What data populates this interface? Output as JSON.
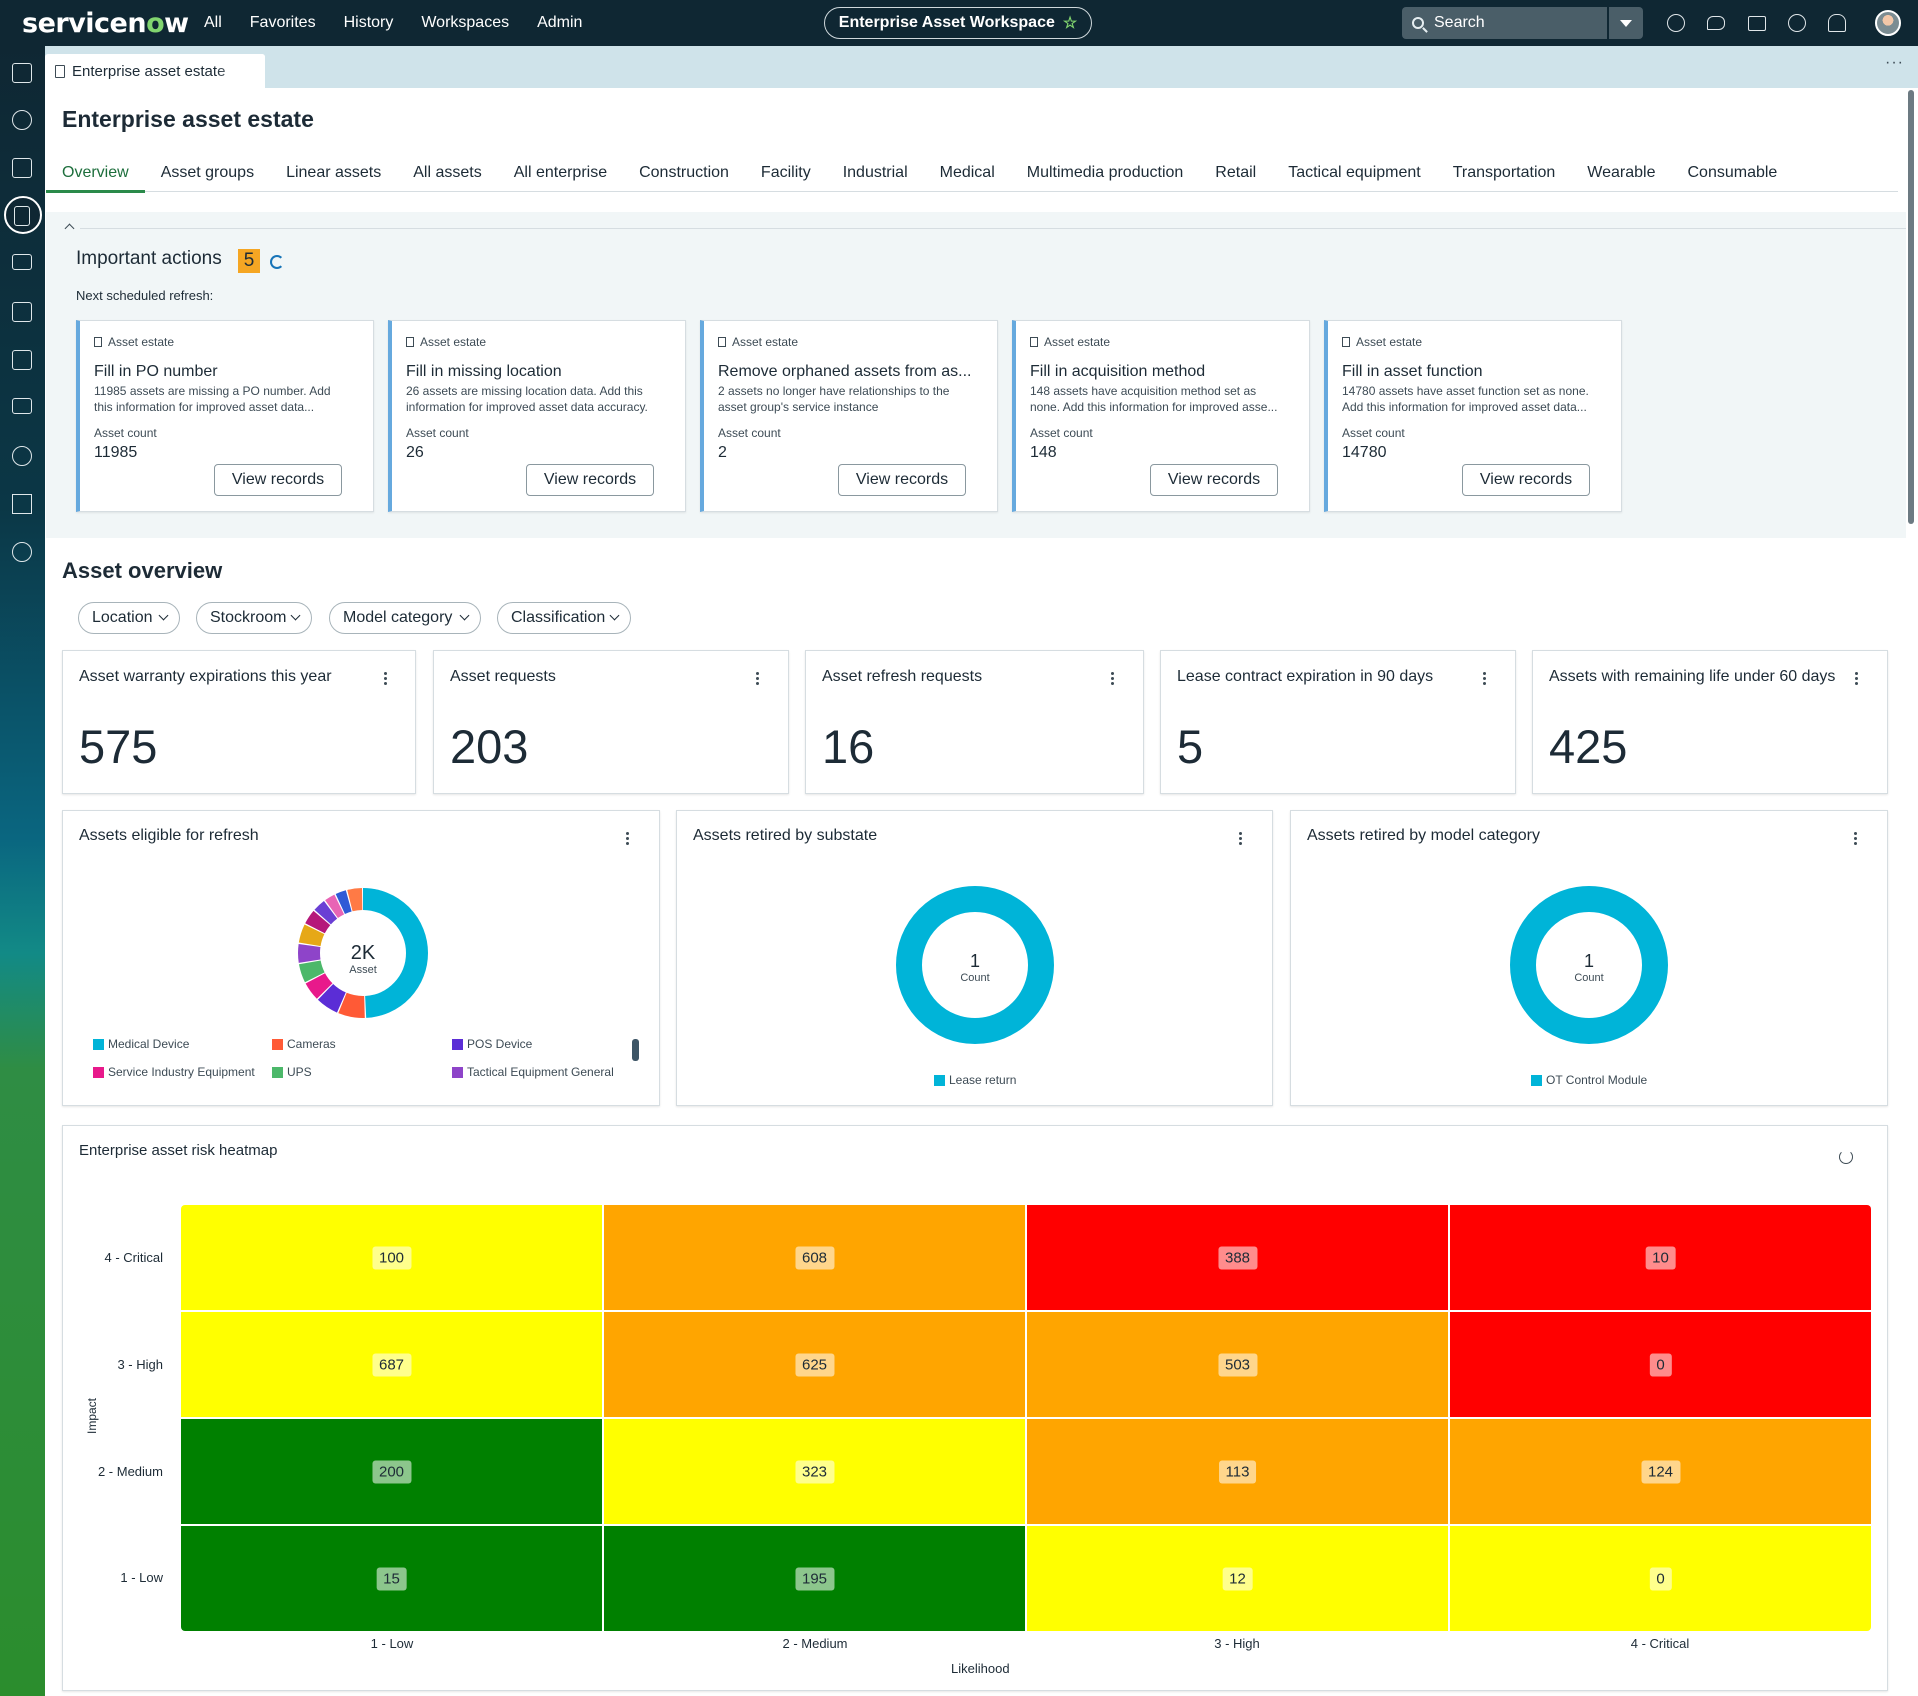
{
  "topbar": {
    "logo_prefix": "servicen",
    "logo_o": "o",
    "logo_suffix": "w",
    "nav": [
      "All",
      "Favorites",
      "History",
      "Workspaces",
      "Admin"
    ],
    "workspace": "Enterprise Asset Workspace",
    "search_placeholder": "Search",
    "icons": [
      "globe-icon",
      "chat-icon",
      "inbox-icon",
      "help-icon",
      "bell-icon",
      "avatar"
    ]
  },
  "rail": {
    "icons": [
      "home-icon",
      "dashboard-icon",
      "building-icon",
      "clipboard-icon",
      "sliders-icon",
      "contract-icon",
      "book-icon",
      "list-icon",
      "wrench-icon",
      "transfer-icon",
      "settings-icon"
    ]
  },
  "tabstrip": {
    "doc_tab": "Enterprise asset estate",
    "more": "···"
  },
  "page": {
    "title": "Enterprise asset estate",
    "tabs": [
      "Overview",
      "Asset groups",
      "Linear assets",
      "All assets",
      "All enterprise",
      "Construction",
      "Facility",
      "Industrial",
      "Medical",
      "Multimedia production",
      "Retail",
      "Tactical equipment",
      "Transportation",
      "Wearable",
      "Consumable"
    ],
    "selected_tab": "Overview"
  },
  "important_actions": {
    "title": "Important actions",
    "count": "5",
    "next_refresh": "Next scheduled refresh:",
    "cards": [
      {
        "category": "Asset estate",
        "title": "Fill in PO number",
        "desc": "11985 assets are missing a PO number. Add this information for improved asset data...",
        "count_label": "Asset count",
        "count": "11985",
        "button": "View records"
      },
      {
        "category": "Asset estate",
        "title": "Fill in missing location",
        "desc": "26 assets are missing location data. Add this information for improved asset data accuracy.",
        "count_label": "Asset count",
        "count": "26",
        "button": "View records"
      },
      {
        "category": "Asset estate",
        "title": "Remove orphaned assets from as...",
        "desc": "2 assets no longer have relationships to the asset group's service instance",
        "count_label": "Asset count",
        "count": "2",
        "button": "View records"
      },
      {
        "category": "Asset estate",
        "title": "Fill in acquisition method",
        "desc": "148 assets have acquisition method set as none. Add this information for improved asse...",
        "count_label": "Asset count",
        "count": "148",
        "button": "View records"
      },
      {
        "category": "Asset estate",
        "title": "Fill in asset function",
        "desc": "14780 assets have asset function set as none. Add this information for improved asset data...",
        "count_label": "Asset count",
        "count": "14780",
        "button": "View records"
      }
    ]
  },
  "asset_overview": {
    "title": "Asset overview",
    "filters": [
      "Location",
      "Stockroom",
      "Model category",
      "Classification"
    ],
    "kpis": [
      {
        "label": "Asset warranty expirations this year",
        "value": "575"
      },
      {
        "label": "Asset requests",
        "value": "203"
      },
      {
        "label": "Asset refresh requests",
        "value": "16"
      },
      {
        "label": "Lease contract expiration in 90 days",
        "value": "5"
      },
      {
        "label": "Assets with remaining life under 60 days",
        "value": "425"
      }
    ]
  },
  "chart_data": [
    {
      "type": "pie",
      "title": "Assets eligible for refresh",
      "center_value": "2K",
      "center_label": "Asset",
      "legend": [
        {
          "name": "Medical Device",
          "color": "#00b4d8"
        },
        {
          "name": "Cameras",
          "color": "#ff5a36"
        },
        {
          "name": "POS Device",
          "color": "#5b2dd6"
        },
        {
          "name": "Service Industry Equipment",
          "color": "#e8198b"
        },
        {
          "name": "UPS",
          "color": "#4cb86a"
        },
        {
          "name": "Tactical Equipment General",
          "color": "#8e44c9"
        }
      ],
      "slices": [
        {
          "name": "Medical Device",
          "value": 49.5,
          "color": "#00b4d8"
        },
        {
          "name": "Cameras",
          "value": 7,
          "color": "#ff5a36"
        },
        {
          "name": "POS Device",
          "value": 6,
          "color": "#5b2dd6"
        },
        {
          "name": "Service Industry Equipment",
          "value": 5,
          "color": "#e8198b"
        },
        {
          "name": "UPS",
          "value": 5,
          "color": "#4cb86a"
        },
        {
          "name": "Tactical Equipment General",
          "value": 5,
          "color": "#8e44c9"
        },
        {
          "name": "",
          "value": 5,
          "color": "#e6a817"
        },
        {
          "name": "",
          "value": 4,
          "color": "#b5177a"
        },
        {
          "name": "",
          "value": 3.5,
          "color": "#6a3fd4"
        },
        {
          "name": "",
          "value": 3,
          "color": "#e864b5"
        },
        {
          "name": "",
          "value": 3,
          "color": "#2e5ad6"
        },
        {
          "name": "",
          "value": 4,
          "color": "#ff7a45"
        }
      ]
    },
    {
      "type": "pie",
      "title": "Assets retired by substate",
      "center_value": "1",
      "center_label": "Count",
      "legend": [
        {
          "name": "Lease return",
          "color": "#00b4d8"
        }
      ],
      "slices": [
        {
          "name": "Lease return",
          "value": 1,
          "color": "#00b4d8"
        }
      ]
    },
    {
      "type": "pie",
      "title": "Assets retired by model category",
      "center_value": "1",
      "center_label": "Count",
      "legend": [
        {
          "name": "OT Control Module",
          "color": "#00b4d8"
        }
      ],
      "slices": [
        {
          "name": "OT Control Module",
          "value": 1,
          "color": "#00b4d8"
        }
      ]
    },
    {
      "type": "heatmap",
      "title": "Enterprise asset risk heatmap",
      "xlabel": "Likelihood",
      "ylabel": "Impact",
      "x": [
        "1 - Low",
        "2 - Medium",
        "3 - High",
        "4 - Critical"
      ],
      "y": [
        "4 - Critical",
        "3 - High",
        "2 - Medium",
        "1 - Low"
      ],
      "values": [
        [
          100,
          608,
          388,
          10
        ],
        [
          687,
          625,
          503,
          0
        ],
        [
          200,
          323,
          113,
          124
        ],
        [
          15,
          195,
          12,
          0
        ]
      ],
      "colors": [
        [
          "#ffff00",
          "#ffa500",
          "#ff0000",
          "#ff0000"
        ],
        [
          "#ffff00",
          "#ffa500",
          "#ffa500",
          "#ff0000"
        ],
        [
          "#008000",
          "#ffff00",
          "#ffa500",
          "#ffa500"
        ],
        [
          "#008000",
          "#008000",
          "#ffff00",
          "#ffff00"
        ]
      ]
    }
  ]
}
